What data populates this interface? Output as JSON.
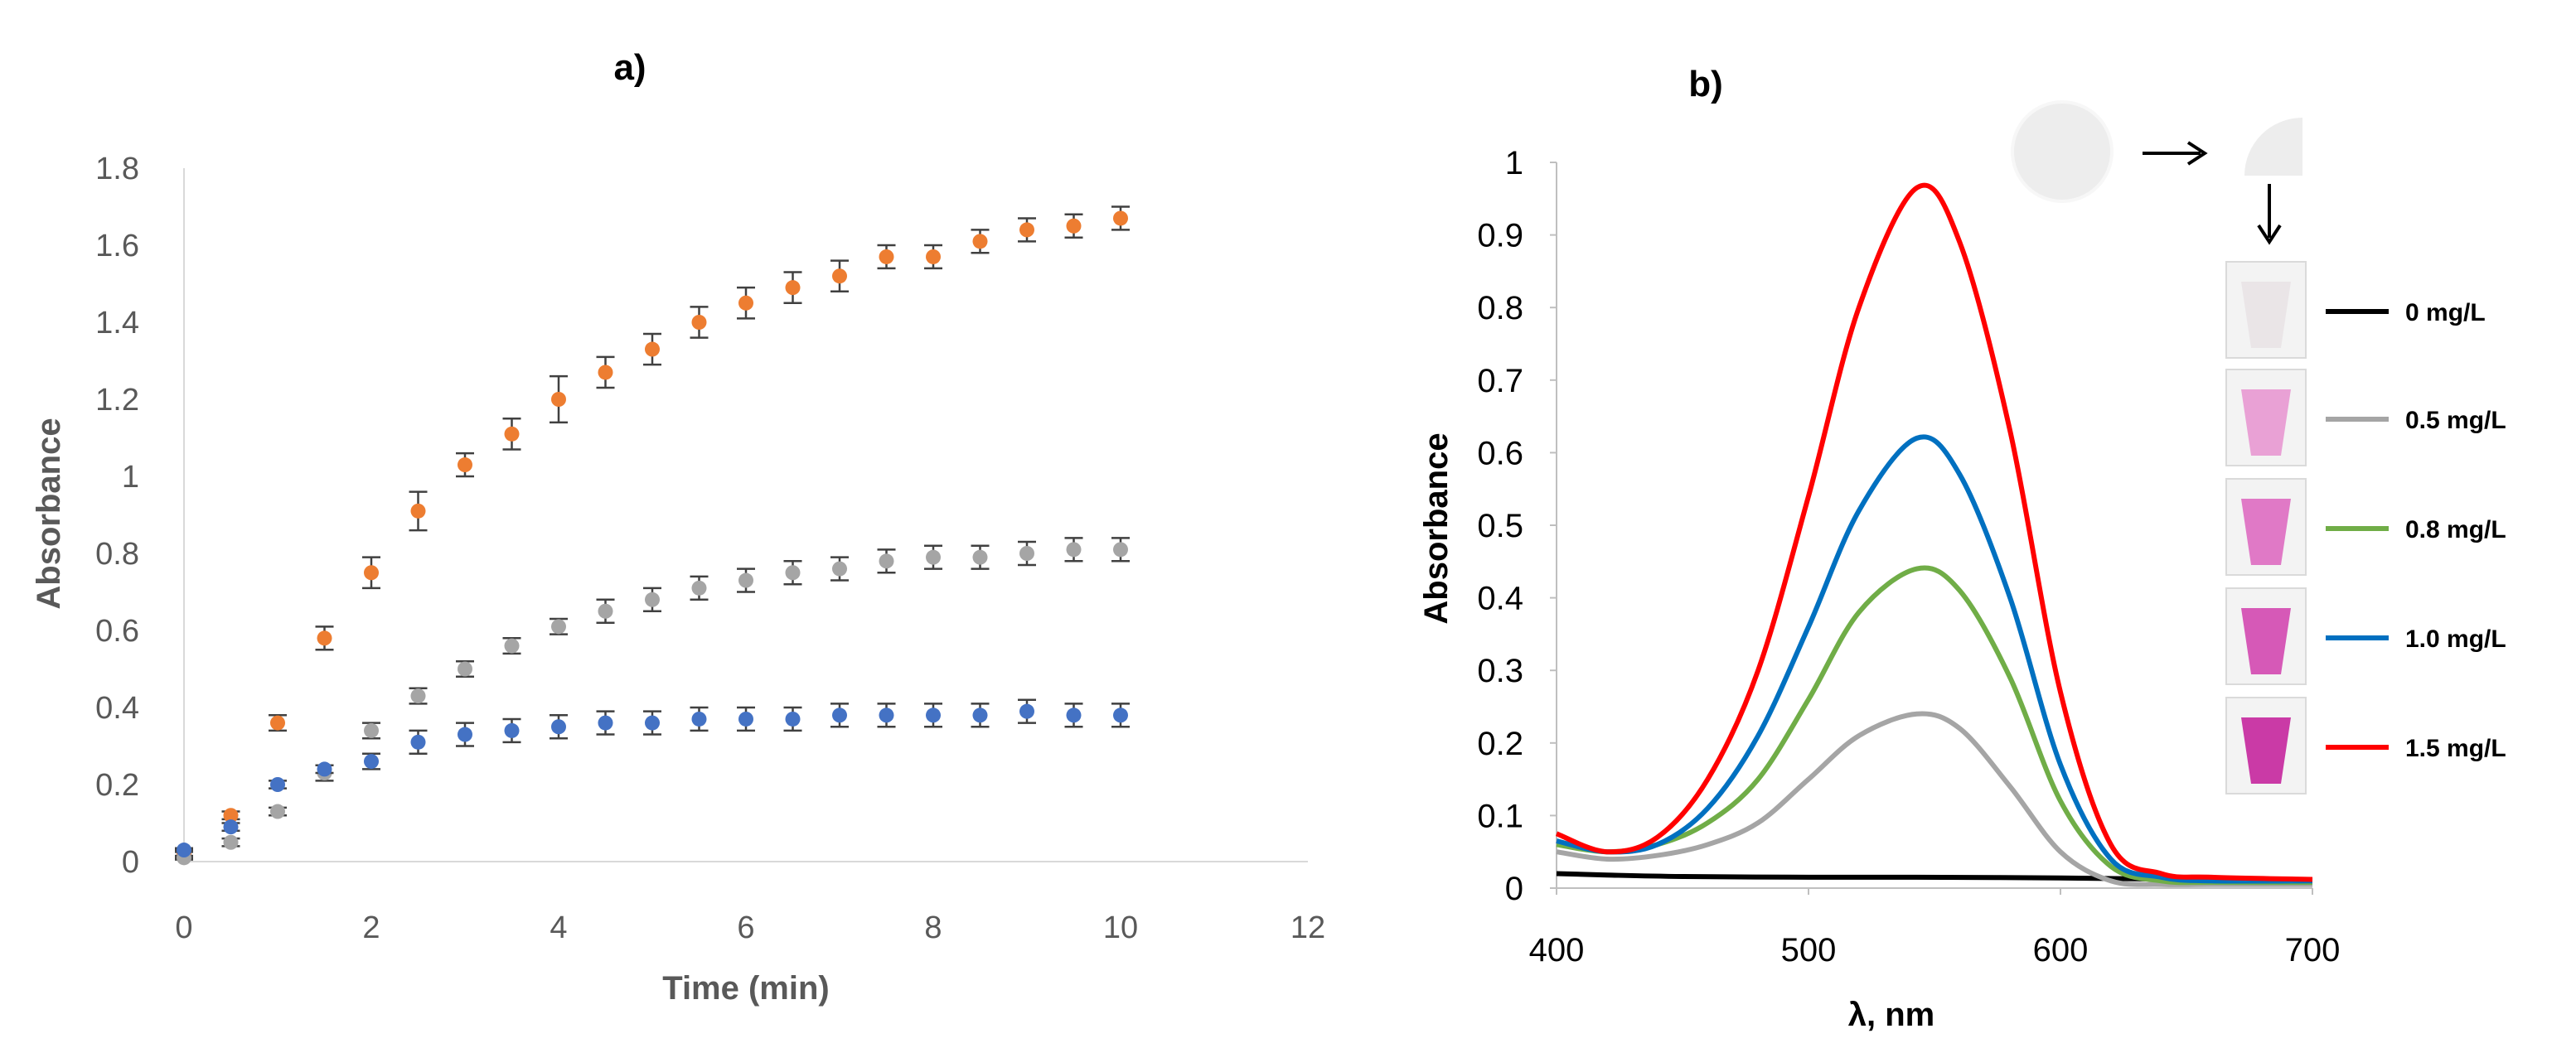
{
  "chart_data": [
    {
      "panel": "a",
      "type": "scatter",
      "title": "a)",
      "xlabel": "Time (min)",
      "ylabel": "Absorbance",
      "xlim": [
        0,
        12
      ],
      "ylim": [
        0,
        1.8
      ],
      "xticks": [
        0,
        2,
        4,
        6,
        8,
        10,
        12
      ],
      "yticks": [
        0,
        0.2,
        0.4,
        0.6,
        0.8,
        1,
        1.2,
        1.4,
        1.6,
        1.8
      ],
      "ytick_labels": [
        "0",
        "0.2",
        "0.4",
        "0.6",
        "0.8",
        "1",
        "1.2",
        "1.4",
        "1.6",
        "1.8"
      ],
      "x": [
        0,
        0.5,
        1,
        1.5,
        2,
        2.5,
        3,
        3.5,
        4,
        4.5,
        5,
        5.5,
        6,
        6.5,
        7,
        7.5,
        8,
        8.5,
        9,
        9.5,
        10
      ],
      "series": [
        {
          "name": "orange",
          "color": "#ED7D31",
          "values": [
            0.02,
            0.12,
            0.36,
            0.58,
            0.75,
            0.91,
            1.03,
            1.11,
            1.2,
            1.27,
            1.33,
            1.4,
            1.45,
            1.49,
            1.52,
            1.57,
            1.57,
            1.61,
            1.64,
            1.65,
            1.67
          ],
          "errors": [
            0.01,
            0.01,
            0.02,
            0.03,
            0.04,
            0.05,
            0.03,
            0.04,
            0.06,
            0.04,
            0.04,
            0.04,
            0.04,
            0.04,
            0.04,
            0.03,
            0.03,
            0.03,
            0.03,
            0.03,
            0.03
          ]
        },
        {
          "name": "gray",
          "color": "#A5A5A5",
          "values": [
            0.01,
            0.05,
            0.13,
            0.23,
            0.34,
            0.43,
            0.5,
            0.56,
            0.61,
            0.65,
            0.68,
            0.71,
            0.73,
            0.75,
            0.76,
            0.78,
            0.79,
            0.79,
            0.8,
            0.81,
            0.81
          ],
          "errors": [
            0.005,
            0.01,
            0.01,
            0.02,
            0.02,
            0.02,
            0.02,
            0.02,
            0.02,
            0.03,
            0.03,
            0.03,
            0.03,
            0.03,
            0.03,
            0.03,
            0.03,
            0.03,
            0.03,
            0.03,
            0.03
          ]
        },
        {
          "name": "blue",
          "color": "#4472C4",
          "values": [
            0.03,
            0.09,
            0.2,
            0.24,
            0.26,
            0.31,
            0.33,
            0.34,
            0.35,
            0.36,
            0.36,
            0.37,
            0.37,
            0.37,
            0.38,
            0.38,
            0.38,
            0.38,
            0.39,
            0.38,
            0.38
          ],
          "errors": [
            0.005,
            0.01,
            0.01,
            0.01,
            0.02,
            0.03,
            0.03,
            0.03,
            0.03,
            0.03,
            0.03,
            0.03,
            0.03,
            0.03,
            0.03,
            0.03,
            0.03,
            0.03,
            0.03,
            0.03,
            0.03
          ]
        }
      ]
    },
    {
      "panel": "b",
      "type": "line",
      "title": "b)",
      "xlabel": "λ, nm",
      "ylabel": "Absorbance",
      "xlim": [
        400,
        700
      ],
      "ylim": [
        0,
        1
      ],
      "xticks": [
        400,
        500,
        600,
        700
      ],
      "yticks": [
        0,
        0.1,
        0.2,
        0.3,
        0.4,
        0.5,
        0.6,
        0.7,
        0.8,
        0.9,
        1
      ],
      "ytick_labels": [
        "0",
        "0.1",
        "0.2",
        "0.3",
        "0.4",
        "0.5",
        "0.6",
        "0.7",
        "0.8",
        "0.9",
        "1"
      ],
      "series": [
        {
          "name": "0 mg/L",
          "color": "#000000",
          "x": [
            400,
            420,
            450,
            500,
            543,
            600,
            650,
            700
          ],
          "values": [
            0.02,
            0.018,
            0.016,
            0.015,
            0.015,
            0.014,
            0.012,
            0.01
          ]
        },
        {
          "name": "0.5  mg/L",
          "color": "#A5A5A5",
          "x": [
            400,
            420,
            440,
            460,
            480,
            500,
            520,
            543,
            560,
            580,
            600,
            620,
            640,
            660,
            700
          ],
          "values": [
            0.05,
            0.04,
            0.045,
            0.06,
            0.09,
            0.15,
            0.21,
            0.24,
            0.22,
            0.14,
            0.05,
            0.01,
            0.005,
            0.005,
            0.005
          ]
        },
        {
          "name": "0.8  mg/L",
          "color": "#70AD47",
          "x": [
            400,
            420,
            440,
            460,
            480,
            500,
            520,
            543,
            560,
            580,
            600,
            620,
            640,
            660,
            700
          ],
          "values": [
            0.06,
            0.05,
            0.06,
            0.09,
            0.15,
            0.26,
            0.38,
            0.44,
            0.41,
            0.29,
            0.12,
            0.03,
            0.01,
            0.008,
            0.008
          ]
        },
        {
          "name": "1.0  mg/L",
          "color": "#0070C0",
          "x": [
            400,
            420,
            440,
            460,
            480,
            500,
            520,
            543,
            560,
            580,
            600,
            620,
            640,
            660,
            700
          ],
          "values": [
            0.065,
            0.05,
            0.06,
            0.11,
            0.21,
            0.36,
            0.52,
            0.62,
            0.57,
            0.4,
            0.17,
            0.04,
            0.015,
            0.01,
            0.01
          ]
        },
        {
          "name": "1.5  mg/L",
          "color": "#FF0000",
          "x": [
            400,
            420,
            440,
            460,
            480,
            500,
            520,
            543,
            560,
            580,
            600,
            620,
            640,
            660,
            700
          ],
          "values": [
            0.075,
            0.05,
            0.07,
            0.15,
            0.3,
            0.54,
            0.8,
            0.965,
            0.89,
            0.63,
            0.27,
            0.06,
            0.02,
            0.015,
            0.012
          ]
        }
      ],
      "inset": {
        "icons": [
          "disc-icon",
          "arrow-right-icon",
          "quarter-disc-icon",
          "arrow-down-icon"
        ],
        "vial_colors": [
          "#E9E4E6",
          "#E89AD3",
          "#DE6FC2",
          "#D44CB2",
          "#C72AA0"
        ]
      }
    }
  ]
}
